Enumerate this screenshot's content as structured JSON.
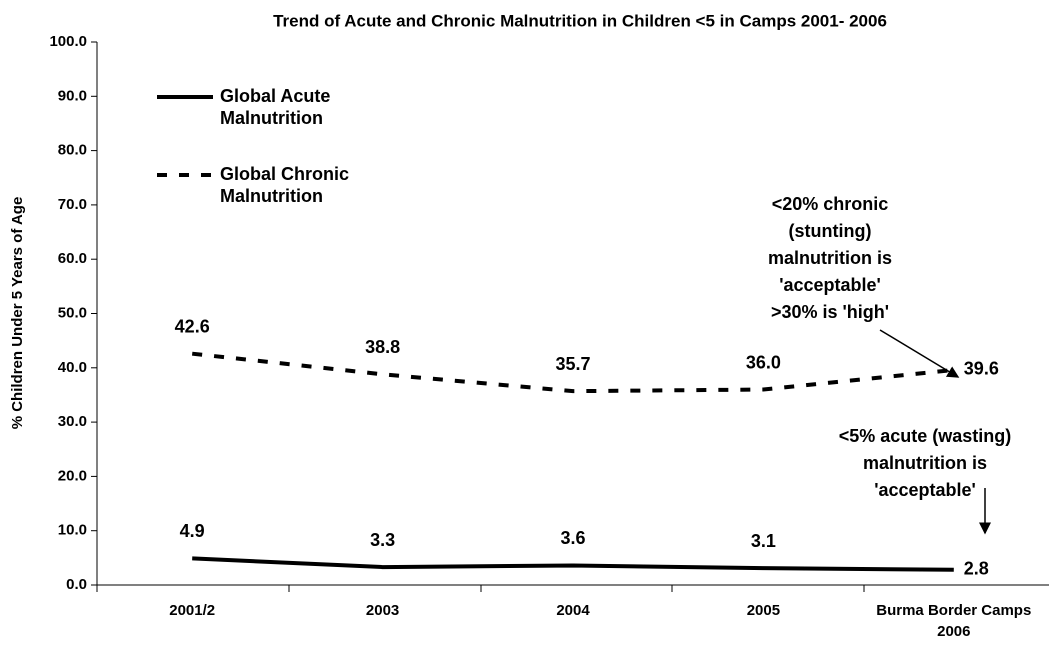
{
  "chart_data": {
    "type": "line",
    "title": "Trend of Acute and Chronic Malnutrition in Children <5 in Camps 2001- 2006",
    "y_label": "% Children Under 5 Years of Age",
    "categories": [
      "2001/2",
      "2003",
      "2004",
      "2005",
      "Burma Border Camps 2006"
    ],
    "series": [
      {
        "name": "Global Acute Malnutrition",
        "color": "#000000",
        "line_style": "solid",
        "values": [
          4.9,
          3.3,
          3.6,
          3.1,
          2.8
        ],
        "value_labels": [
          "4.9",
          "3.3",
          "3.6",
          "3.1",
          "2.8"
        ]
      },
      {
        "name": "Global Chronic Malnutrition",
        "color": "#000000",
        "line_style": "dashed",
        "values": [
          42.6,
          38.8,
          35.7,
          36.0,
          39.6
        ],
        "value_labels": [
          "42.6",
          "38.8",
          "35.7",
          "36.0",
          "39.6"
        ]
      }
    ],
    "ylim": [
      0,
      100
    ],
    "yticks": [
      {
        "value": 0,
        "label": "0.0"
      },
      {
        "value": 10,
        "label": "10.0"
      },
      {
        "value": 20,
        "label": "20.0"
      },
      {
        "value": 30,
        "label": "30.0"
      },
      {
        "value": 40,
        "label": "40.0"
      },
      {
        "value": 50,
        "label": "50.0"
      },
      {
        "value": 60,
        "label": "60.0"
      },
      {
        "value": 70,
        "label": "70.0"
      },
      {
        "value": 80,
        "label": "80.0"
      },
      {
        "value": 90,
        "label": "90.0"
      },
      {
        "value": 100,
        "label": "100.0"
      }
    ],
    "annotations": [
      {
        "lines": [
          "<20% chronic",
          "(stunting)",
          "malnutrition is",
          "'acceptable'",
          ">30% is 'high'"
        ]
      },
      {
        "lines": [
          "<5% acute (wasting)",
          "malnutrition is",
          "'acceptable'"
        ]
      }
    ]
  }
}
